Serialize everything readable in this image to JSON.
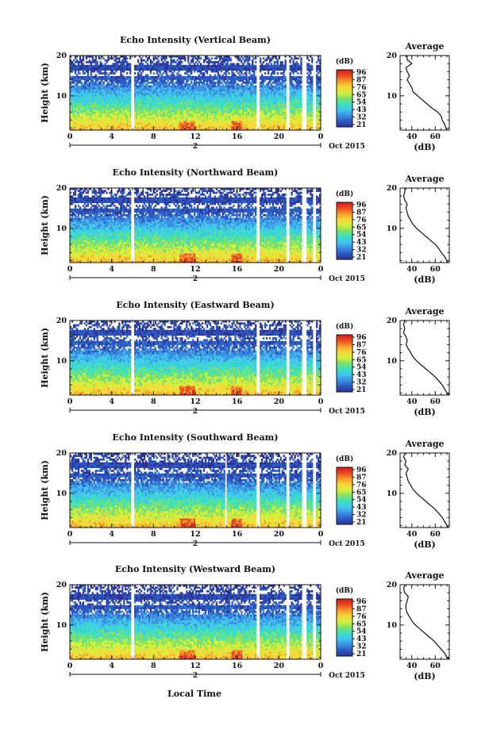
{
  "figure": {
    "bottom_xlabel": "Local Time",
    "date_label": "Oct 2015",
    "day_marker": "2",
    "ylabel": "Height (km)",
    "colorbar_unit": "(dB)",
    "colorbar_levels": [
      "96",
      "87",
      "76",
      "65",
      "54",
      "43",
      "32",
      "21"
    ],
    "colormap": [
      "#2e3192",
      "#2b59c3",
      "#3d8fe0",
      "#41c4f0",
      "#3be0c0",
      "#7fe06a",
      "#d4f03b",
      "#f7d63a",
      "#f59a2a",
      "#e84b22",
      "#d7191c"
    ],
    "profile_title": "Average",
    "profile_xlabel": "(dB)"
  },
  "chart_data": [
    {
      "type": "heatmap",
      "title": "Echo Intensity (Vertical Beam)",
      "ylabel": "Height (km)",
      "x_ticks": [
        "0",
        "4",
        "8",
        "12",
        "16",
        "20",
        "0"
      ],
      "y_ticks": [
        "20",
        "10"
      ],
      "xlim": [
        0,
        24
      ],
      "ylim": [
        1.5,
        20
      ],
      "data_gaps_hours": [
        [
          5.9,
          6.2
        ],
        [
          17.8,
          18.1
        ],
        [
          20.7,
          21.0
        ],
        [
          22.2,
          22.6
        ],
        [
          23.3,
          23.6
        ]
      ],
      "profile": {
        "title": "Average",
        "x_ticks": [
          "40",
          "60"
        ],
        "y_ticks": [
          "20",
          "10"
        ],
        "xlim": [
          30,
          72
        ],
        "height_km": [
          1.5,
          2,
          3,
          4,
          5,
          6,
          7,
          8,
          9,
          10,
          11,
          12,
          13,
          14,
          15,
          16,
          17,
          18,
          19,
          20
        ],
        "mean_db": [
          70,
          69,
          68,
          66,
          65,
          62,
          57,
          53,
          49,
          45,
          41,
          40,
          38,
          36,
          38,
          36,
          35,
          40,
          36,
          36
        ]
      }
    },
    {
      "type": "heatmap",
      "title": "Echo Intensity (Northward Beam)",
      "ylabel": "Height (km)",
      "x_ticks": [
        "0",
        "4",
        "8",
        "12",
        "16",
        "20",
        "0"
      ],
      "y_ticks": [
        "20",
        "10"
      ],
      "xlim": [
        0,
        24
      ],
      "ylim": [
        1.5,
        20
      ],
      "data_gaps_hours": [
        [
          5.9,
          6.2
        ],
        [
          17.8,
          18.1
        ],
        [
          20.7,
          21.0
        ],
        [
          22.2,
          22.6
        ],
        [
          23.3,
          23.6
        ]
      ],
      "profile": {
        "title": "Average",
        "x_ticks": [
          "40",
          "60"
        ],
        "y_ticks": [
          "20",
          "10"
        ],
        "xlim": [
          30,
          72
        ],
        "height_km": [
          1.5,
          2,
          3,
          4,
          5,
          6,
          7,
          8,
          9,
          10,
          11,
          12,
          13,
          14,
          15,
          16,
          17,
          18,
          19,
          20
        ],
        "mean_db": [
          71,
          70,
          68,
          65,
          63,
          60,
          56,
          52,
          48,
          44,
          41,
          39,
          37,
          36,
          35,
          36,
          34,
          33,
          34,
          34
        ]
      }
    },
    {
      "type": "heatmap",
      "title": "Echo Intensity (Eastward Beam)",
      "ylabel": "Height (km)",
      "x_ticks": [
        "0",
        "4",
        "8",
        "12",
        "16",
        "20",
        "0"
      ],
      "y_ticks": [
        "20",
        "10"
      ],
      "xlim": [
        0,
        24
      ],
      "ylim": [
        1.5,
        20
      ],
      "data_gaps_hours": [
        [
          5.9,
          6.2
        ],
        [
          17.8,
          18.1
        ],
        [
          20.7,
          21.0
        ],
        [
          22.2,
          22.6
        ],
        [
          23.3,
          23.6
        ]
      ],
      "profile": {
        "title": "Average",
        "x_ticks": [
          "40",
          "60"
        ],
        "y_ticks": [
          "20",
          "10"
        ],
        "xlim": [
          30,
          72
        ],
        "height_km": [
          1.5,
          2,
          3,
          4,
          5,
          6,
          7,
          8,
          9,
          10,
          11,
          12,
          13,
          14,
          15,
          16,
          17,
          18,
          19,
          20
        ],
        "mean_db": [
          72,
          70,
          68,
          66,
          63,
          60,
          56,
          52,
          48,
          44,
          41,
          39,
          37,
          35,
          36,
          35,
          33,
          34,
          33,
          34
        ]
      }
    },
    {
      "type": "heatmap",
      "title": "Echo Intensity (Southward Beam)",
      "ylabel": "Height (km)",
      "x_ticks": [
        "0",
        "4",
        "8",
        "12",
        "16",
        "20",
        "0"
      ],
      "y_ticks": [
        "20",
        "10"
      ],
      "xlim": [
        0,
        24
      ],
      "ylim": [
        1.5,
        20
      ],
      "data_gaps_hours": [
        [
          5.9,
          6.2
        ],
        [
          14.8,
          15.0
        ],
        [
          17.8,
          18.1
        ],
        [
          20.7,
          21.0
        ],
        [
          22.2,
          22.6
        ],
        [
          23.3,
          23.6
        ]
      ],
      "profile": {
        "title": "Average",
        "x_ticks": [
          "40",
          "60"
        ],
        "y_ticks": [
          "20",
          "10"
        ],
        "xlim": [
          30,
          72
        ],
        "height_km": [
          1.5,
          2,
          3,
          4,
          5,
          6,
          7,
          8,
          9,
          10,
          11,
          12,
          13,
          14,
          15,
          16,
          17,
          18,
          19,
          20
        ],
        "mean_db": [
          71,
          70,
          68,
          66,
          63,
          60,
          56,
          52,
          48,
          44,
          41,
          39,
          37,
          36,
          35,
          37,
          34,
          35,
          33,
          34
        ]
      }
    },
    {
      "type": "heatmap",
      "title": "Echo Intensity (Westward Beam)",
      "ylabel": "Height (km)",
      "x_ticks": [
        "0",
        "4",
        "8",
        "12",
        "16",
        "20",
        "0"
      ],
      "y_ticks": [
        "20",
        "10"
      ],
      "xlim": [
        0,
        24
      ],
      "ylim": [
        1.5,
        20
      ],
      "data_gaps_hours": [
        [
          5.9,
          6.2
        ],
        [
          17.8,
          18.1
        ],
        [
          20.7,
          21.0
        ],
        [
          22.2,
          22.6
        ],
        [
          23.3,
          23.6
        ]
      ],
      "profile": {
        "title": "Average",
        "x_ticks": [
          "40",
          "60"
        ],
        "y_ticks": [
          "20",
          "10"
        ],
        "xlim": [
          30,
          72
        ],
        "height_km": [
          1.5,
          2,
          3,
          4,
          5,
          6,
          7,
          8,
          9,
          10,
          11,
          12,
          13,
          14,
          15,
          16,
          17,
          18,
          19,
          20
        ],
        "mean_db": [
          72,
          70,
          68,
          65,
          62,
          59,
          55,
          51,
          47,
          43,
          40,
          38,
          36,
          35,
          35,
          36,
          37,
          34,
          33,
          34
        ]
      }
    }
  ]
}
